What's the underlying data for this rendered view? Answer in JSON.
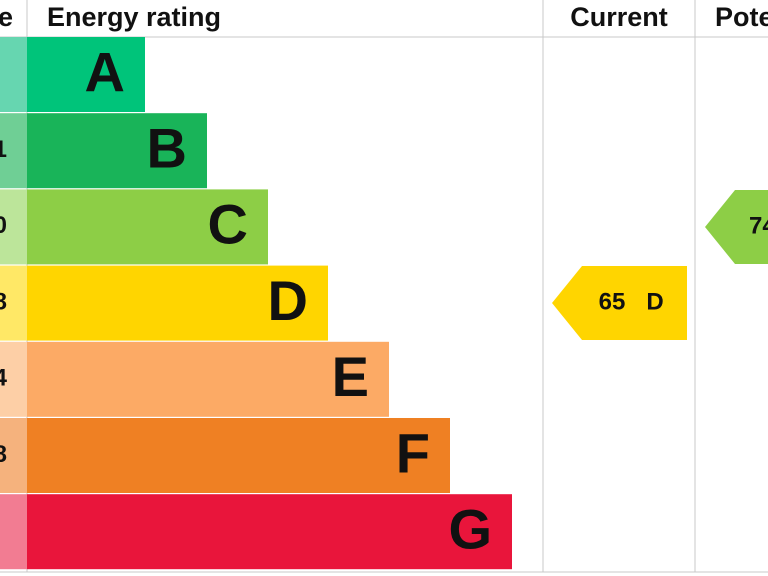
{
  "header": {
    "score_fragment": "e",
    "title": "Energy rating",
    "current": "Current",
    "potential": "Pote"
  },
  "bands": [
    {
      "letter": "A"
    },
    {
      "letter": "B",
      "score_fragment": "1"
    },
    {
      "letter": "C",
      "score_fragment": "0"
    },
    {
      "letter": "D",
      "score_fragment": "8"
    },
    {
      "letter": "E",
      "score_fragment": "4"
    },
    {
      "letter": "F",
      "score_fragment": "8"
    },
    {
      "letter": "G"
    }
  ],
  "current": {
    "score": 65,
    "band": "D"
  },
  "potential": {
    "score": 74
  }
}
